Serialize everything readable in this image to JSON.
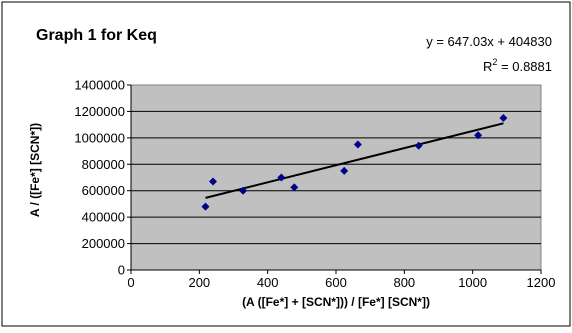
{
  "chart_data": {
    "type": "scatter",
    "title": "Graph 1 for Keq",
    "xlabel": "(A ([Fe*] + [SCN*])) / [Fe*] [SCN*])",
    "ylabel": "A / ([Fe*] [SCN*])",
    "xlim": [
      0,
      1200
    ],
    "ylim": [
      0,
      1400000
    ],
    "xticks": [
      "0",
      "200",
      "400",
      "600",
      "800",
      "1000",
      "1200"
    ],
    "yticks": [
      "0",
      "200000",
      "400000",
      "600000",
      "800000",
      "1000000",
      "1200000",
      "1400000"
    ],
    "grid": true,
    "legend": "none",
    "plot_background": "#c0c0c0",
    "marker_color": "#00008b",
    "trendline_color": "#000000",
    "series": [
      {
        "x": [
          218,
          240,
          328,
          440,
          478,
          624,
          664,
          842,
          1016,
          1090
        ],
        "y": [
          480000,
          670000,
          600000,
          700000,
          625000,
          750000,
          950000,
          940000,
          1020000,
          1150000
        ]
      }
    ],
    "trendline": {
      "slope": 647.03,
      "intercept": 404830,
      "x_range": [
        218,
        1090
      ]
    },
    "equation_text": "y = 647.03x + 404830",
    "r2_label": "R",
    "r2_superscript": "2",
    "r2_value": " = 0.8881"
  }
}
